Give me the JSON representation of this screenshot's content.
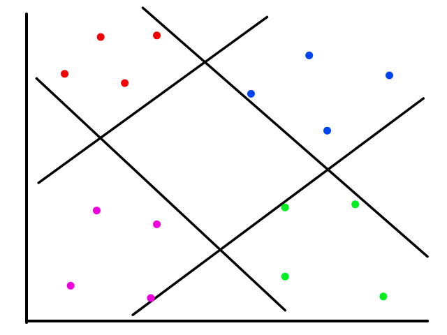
{
  "colors": {
    "background": "#ffffff",
    "axis": "#000000",
    "line": "#000000",
    "red": "#f00000",
    "blue": "#0044ee",
    "magenta": "#ee00dd",
    "green": "#00ee22"
  },
  "chart_data": {
    "type": "scatter",
    "title": "",
    "xlabel": "",
    "ylabel": "",
    "grid": false,
    "xlim": [
      0,
      100
    ],
    "ylim": [
      0,
      100
    ],
    "series": [
      {
        "color_key": "red",
        "points": [
          [
            18.5,
            92.5
          ],
          [
            32.5,
            93.0
          ],
          [
            9.5,
            80.5
          ],
          [
            24.5,
            77.5
          ]
        ]
      },
      {
        "color_key": "blue",
        "points": [
          [
            70.5,
            86.5
          ],
          [
            56.0,
            74.0
          ],
          [
            90.5,
            80.0
          ],
          [
            75.0,
            62.0
          ]
        ]
      },
      {
        "color_key": "magenta",
        "points": [
          [
            17.5,
            36.0
          ],
          [
            32.5,
            31.5
          ],
          [
            11.0,
            11.5
          ],
          [
            31.0,
            7.5
          ]
        ]
      },
      {
        "color_key": "green",
        "points": [
          [
            64.5,
            37.0
          ],
          [
            82.0,
            38.0
          ],
          [
            64.5,
            14.5
          ],
          [
            89.0,
            8.0
          ]
        ]
      }
    ],
    "lines": [
      {
        "from": [
          3.0,
          45.0
        ],
        "to": [
          60.0,
          99.0
        ]
      },
      {
        "from": [
          26.5,
          2.0
        ],
        "to": [
          99.0,
          72.5
        ]
      },
      {
        "from": [
          2.5,
          79.0
        ],
        "to": [
          64.5,
          3.5
        ]
      },
      {
        "from": [
          29.0,
          102.0
        ],
        "to": [
          100.0,
          21.0
        ]
      }
    ]
  }
}
